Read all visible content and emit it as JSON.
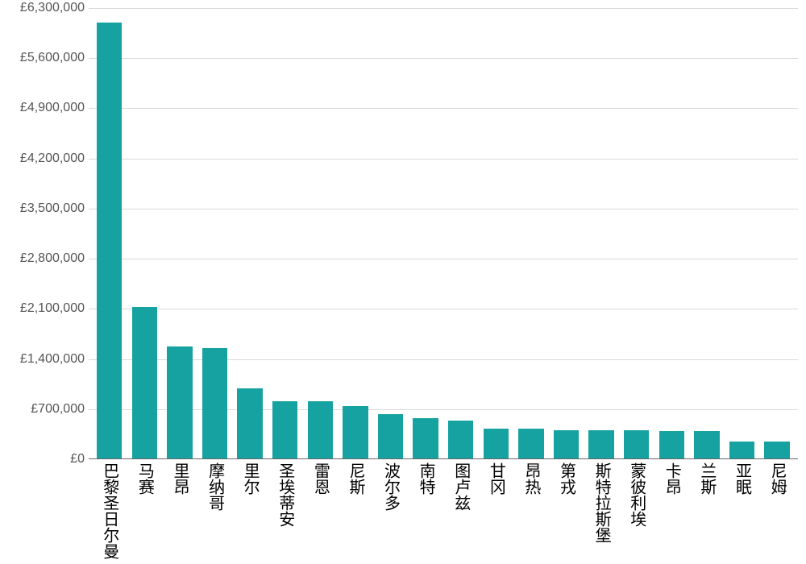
{
  "chart": {
    "type": "bar",
    "background_color": "#ffffff",
    "grid_color": "#d9d9d9",
    "axis_color": "#666666",
    "tick_label_color": "#555555",
    "tick_label_fontsize": 16,
    "x_label_color": "#000000",
    "x_label_fontsize": 20,
    "bar_color": "#17a2a2",
    "bar_width_ratio": 0.72,
    "ylim": [
      0,
      6300000
    ],
    "ytick_step": 700000,
    "y_tick_labels": [
      "£0",
      "£700,000",
      "£1,400,000",
      "£2,100,000",
      "£2,800,000",
      "£3,500,000",
      "£4,200,000",
      "£4,900,000",
      "£5,600,000",
      "£6,300,000"
    ],
    "categories": [
      "巴黎圣日尔曼",
      "马赛",
      "里昂",
      "摩纳哥",
      "里尔",
      "圣埃蒂安",
      "雷恩",
      "尼斯",
      "波尔多",
      "南特",
      "图卢兹",
      "甘冈",
      "昂热",
      "第戎",
      "斯特拉斯堡",
      "蒙彼利埃",
      "卡昂",
      "兰斯",
      "亚眠",
      "尼姆"
    ],
    "values": [
      6100000,
      2120000,
      1570000,
      1540000,
      980000,
      800000,
      800000,
      730000,
      620000,
      560000,
      530000,
      420000,
      420000,
      400000,
      400000,
      400000,
      380000,
      380000,
      240000,
      240000
    ]
  }
}
